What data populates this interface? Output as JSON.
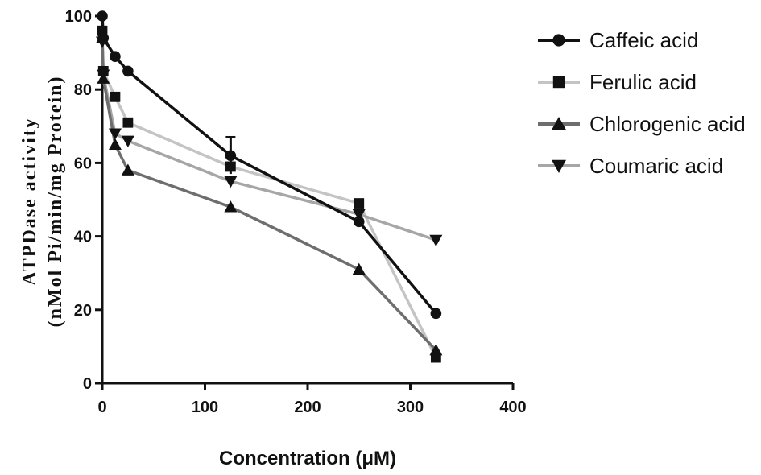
{
  "chart_data": {
    "type": "line",
    "title": "",
    "xlabel": "Concentration (μM)",
    "ylabel_line1": "ATPDase activity",
    "ylabel_line2": "(nMol Pi/min/mg Protein)",
    "xlim": [
      0,
      400
    ],
    "ylim": [
      0,
      100
    ],
    "xticks": [
      0,
      100,
      200,
      300,
      400
    ],
    "yticks": [
      0,
      20,
      40,
      60,
      80,
      100
    ],
    "grid": false,
    "legend_position": "top-right",
    "series": [
      {
        "name": "Caffeic acid",
        "marker": "circle",
        "color": "#111111",
        "x": [
          0,
          1,
          12.5,
          25,
          125,
          250,
          325
        ],
        "y": [
          100,
          94,
          89,
          85,
          62,
          44,
          19
        ]
      },
      {
        "name": "Ferulic acid",
        "marker": "square",
        "color": "#c4c4c4",
        "x": [
          0,
          1,
          12.5,
          25,
          125,
          250,
          325
        ],
        "y": [
          96,
          85,
          78,
          71,
          59,
          49,
          7
        ]
      },
      {
        "name": "Chlorogenic acid",
        "marker": "triangle-up",
        "color": "#6e6e6e",
        "x": [
          0,
          1,
          12.5,
          25,
          125,
          250,
          325
        ],
        "y": [
          94,
          83,
          65,
          58,
          48,
          31,
          9
        ]
      },
      {
        "name": "Coumaric acid",
        "marker": "triangle-down",
        "color": "#a6a6a6",
        "x": [
          0,
          1,
          12.5,
          25,
          125,
          250,
          325
        ],
        "y": [
          93,
          84,
          68,
          66,
          55,
          46,
          39
        ]
      }
    ]
  }
}
